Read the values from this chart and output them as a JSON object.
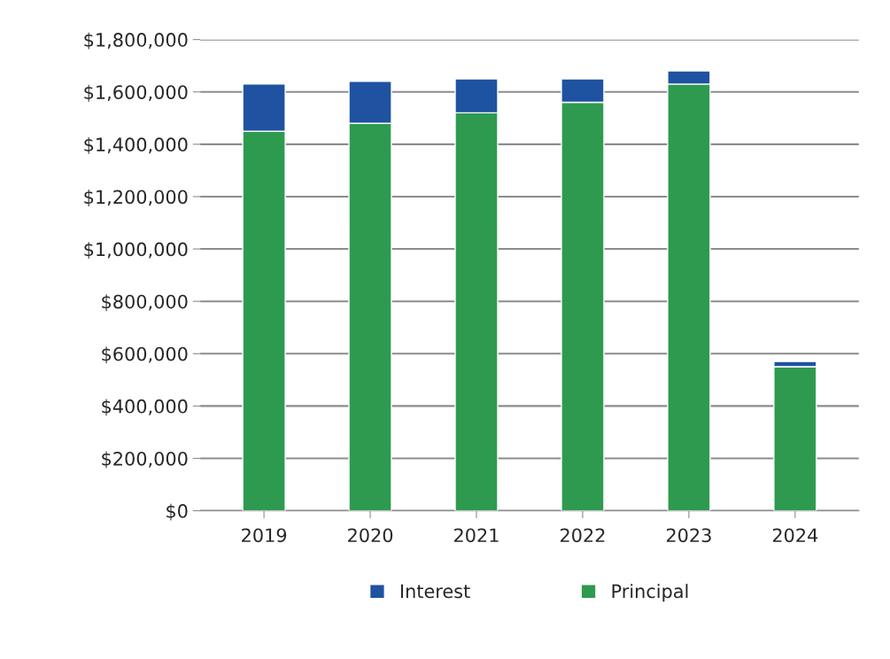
{
  "chart_data": {
    "type": "bar",
    "stacked": true,
    "categories": [
      "2019",
      "2020",
      "2021",
      "2022",
      "2023",
      "2024"
    ],
    "series": [
      {
        "name": "Principal",
        "color": "#2e9a4f",
        "values": [
          1450000,
          1480000,
          1520000,
          1560000,
          1630000,
          550000
        ]
      },
      {
        "name": "Interest",
        "color": "#1f52a0",
        "values": [
          180000,
          160000,
          130000,
          90000,
          50000,
          20000
        ]
      }
    ],
    "ylim": [
      0,
      1800000
    ],
    "yticks": [
      {
        "value": 0,
        "label": "$0"
      },
      {
        "value": 200000,
        "label": "$200,000"
      },
      {
        "value": 400000,
        "label": "$400,000"
      },
      {
        "value": 600000,
        "label": "$600,000"
      },
      {
        "value": 800000,
        "label": "$800,000"
      },
      {
        "value": 1000000,
        "label": "$1,000,000"
      },
      {
        "value": 1200000,
        "label": "$1,200,000"
      },
      {
        "value": 1400000,
        "label": "$1,400,000"
      },
      {
        "value": 1600000,
        "label": "$1,600,000"
      },
      {
        "value": 1800000,
        "label": "$1,800,000"
      }
    ],
    "grid": "y",
    "legend": "bottom"
  }
}
